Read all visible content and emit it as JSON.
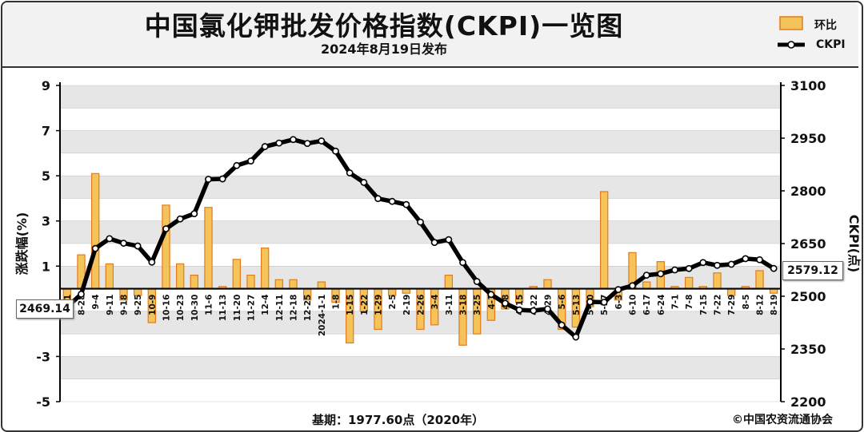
{
  "header": {
    "title": "中国氯化钾批发价格指数(CKPI)一览图",
    "subtitle": "2024年8月19日发布"
  },
  "legend": {
    "bar_label": "环比",
    "line_label": "CKPI"
  },
  "footer": {
    "base": "基期：1977.60点（2020年）",
    "copyright": "©中国农资流通协会"
  },
  "callouts": {
    "start_value": "2469.14",
    "end_value": "2579.12"
  },
  "colors": {
    "bar_fill": "#f4c45a",
    "bar_edge": "#e27b1e",
    "line": "#000000",
    "band": "#e6e6e6"
  },
  "chart_data": {
    "type": "bar+line",
    "x_labels": [
      "8-21",
      "8-28",
      "9-4",
      "9-11",
      "9-18",
      "9-25",
      "10-9",
      "10-16",
      "10-23",
      "10-30",
      "11-6",
      "11-13",
      "11-20",
      "11-27",
      "12-4",
      "12-11",
      "12-18",
      "12-25",
      "2024-1-1",
      "1-8",
      "1-15",
      "1-22",
      "1-29",
      "2-5",
      "2-19",
      "2-26",
      "3-4",
      "3-11",
      "3-18",
      "3-25",
      "4-1",
      "4-8",
      "4-15",
      "4-22",
      "4-29",
      "5-6",
      "5-13",
      "5-20",
      "5-27",
      "6-3",
      "6-10",
      "6-17",
      "6-24",
      "7-1",
      "7-8",
      "7-15",
      "7-22",
      "7-29",
      "8-5",
      "8-12",
      "8-19"
    ],
    "series": [
      {
        "name": "环比",
        "axis": "left",
        "values": [
          -1.2,
          1.5,
          5.1,
          1.1,
          -0.5,
          -0.3,
          -1.5,
          3.7,
          1.1,
          0.6,
          3.6,
          0.1,
          1.3,
          0.6,
          1.8,
          0.4,
          0.4,
          -0.5,
          0.3,
          -0.6,
          -2.4,
          -1.0,
          -1.8,
          -0.3,
          -0.2,
          -1.8,
          -1.6,
          0.6,
          -2.5,
          -2.0,
          -1.4,
          -0.9,
          -0.6,
          0.1,
          0.4,
          -1.8,
          -1.7,
          -0.8,
          4.3,
          -0.5,
          1.6,
          0.3,
          1.2,
          0.1,
          0.5,
          0.1,
          0.7,
          -0.3,
          0.1,
          0.8,
          -0.2
        ]
      },
      {
        "name": "CKPI",
        "axis": "right",
        "values": [
          2469.14,
          2506,
          2636,
          2664,
          2651,
          2643,
          2597,
          2692,
          2720,
          2735,
          2833,
          2834,
          2872,
          2885,
          2926,
          2936,
          2946,
          2935,
          2942,
          2913,
          2851,
          2824,
          2778,
          2770,
          2761,
          2711,
          2653,
          2661,
          2596,
          2542,
          2505,
          2480,
          2461,
          2459,
          2464,
          2418,
          2384,
          2484,
          2483,
          2519,
          2530,
          2560,
          2564,
          2575,
          2579,
          2596,
          2588,
          2591,
          2607,
          2604,
          2579.12
        ]
      }
    ],
    "y_left": {
      "label": "涨跌幅(%)",
      "min": -5,
      "max": 9,
      "ticks": [
        -5,
        -3,
        -1,
        1,
        3,
        5,
        7,
        9
      ]
    },
    "y_right": {
      "label": "CKPI(点)",
      "min": 2200,
      "max": 3100,
      "ticks": [
        2200,
        2350,
        2500,
        2650,
        2800,
        2950,
        3100
      ]
    },
    "grid": "horizontal bands",
    "legend_position": "top-right"
  }
}
